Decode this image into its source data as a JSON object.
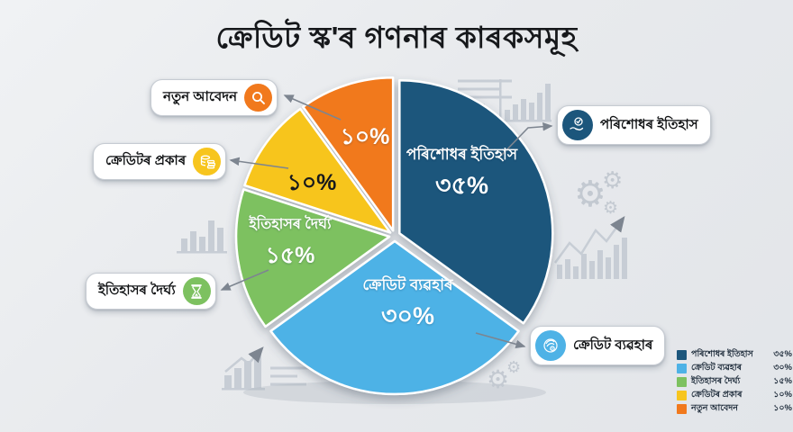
{
  "title": "ক্ৰেডিট স্ক'ৰ গণনাৰ কাৰকসমূহ",
  "chart_data": {
    "type": "pie",
    "title": "ক্ৰেডিট স্ক'ৰ গণনাৰ কাৰকসমূহ",
    "categories": [
      "পৰিশোধৰ ইতিহাস",
      "ক্ৰেডিট ব্যৱহাৰ",
      "ইতিহাসৰ দৈৰ্ঘ্য",
      "ক্ৰেডিটৰ প্ৰকাৰ",
      "নতুন আবেদন"
    ],
    "values": [
      35,
      30,
      15,
      10,
      10
    ],
    "value_labels": [
      "৩৫%",
      "৩০%",
      "১৫%",
      "১০%",
      "১০%"
    ],
    "colors": [
      "#1c567c",
      "#4eb2e6",
      "#7dc160",
      "#f7c51e",
      "#f1791d"
    ],
    "start_angle_deg": 0,
    "direction": "clockwise",
    "legend_position": "bottom-right"
  },
  "callouts": [
    {
      "label": "নতুন আবেদন",
      "icon": "magnifier-icon",
      "color": "#f1791d"
    },
    {
      "label": "ক্ৰেডিটৰ প্ৰকাৰ",
      "icon": "coins-icon",
      "color": "#f7c51e"
    },
    {
      "label": "ইতিহাসৰ দৈৰ্ঘ্য",
      "icon": "hourglass-icon",
      "color": "#7dc160"
    },
    {
      "label": "পৰিশোধৰ ইতিহাস",
      "icon": "hand-check-icon",
      "color": "#1c567c"
    },
    {
      "label": "ক্ৰেডিট ব্যৱহাৰ",
      "icon": "coin-icon",
      "color": "#4eb2e6"
    }
  ],
  "legend": {
    "items": [
      {
        "label": "পৰিশোধৰ ইতিহাস",
        "value": "৩৫%",
        "color": "#1c567c"
      },
      {
        "label": "ক্ৰেডিট ব্যৱহাৰ",
        "value": "৩০%",
        "color": "#4eb2e6"
      },
      {
        "label": "ইতিহাসৰ দৈৰ্ঘ্য",
        "value": "১৫%",
        "color": "#7dc160"
      },
      {
        "label": "ক্ৰেডিটৰ প্ৰকাৰ",
        "value": "১০%",
        "color": "#f7c51e"
      },
      {
        "label": "নতুন আবেদন",
        "value": "১০%",
        "color": "#f1791d"
      }
    ]
  }
}
